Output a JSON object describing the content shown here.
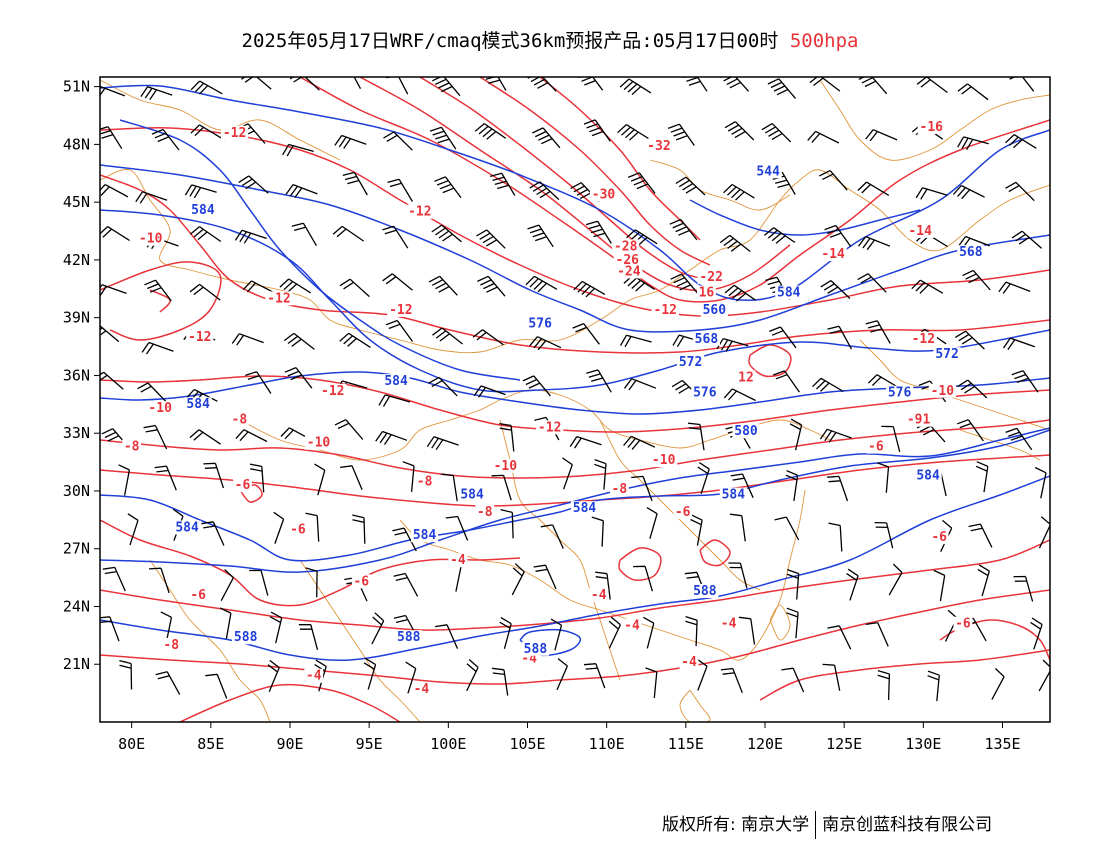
{
  "title": {
    "main": "2025年05月17日WRF/cmaq模式36km预报产品:05月17日00时",
    "level": "500hpa",
    "level_color": "#e8333a"
  },
  "map": {
    "lon_range": [
      78,
      138
    ],
    "lat_range": [
      18,
      51.5
    ],
    "lon_labels": [
      "80E",
      "85E",
      "90E",
      "95E",
      "100E",
      "105E",
      "110E",
      "115E",
      "120E",
      "125E",
      "130E",
      "135E"
    ],
    "lon_values": [
      80,
      85,
      90,
      95,
      100,
      105,
      110,
      115,
      120,
      125,
      130,
      135
    ],
    "lat_labels": [
      "51N",
      "48N",
      "45N",
      "42N",
      "39N",
      "36N",
      "33N",
      "30N",
      "27N",
      "24N",
      "21N"
    ],
    "lat_values": [
      51,
      48,
      45,
      42,
      39,
      36,
      33,
      30,
      27,
      24,
      21
    ],
    "colors": {
      "temperature": "#e8333a",
      "geopotential": "#1f3fd8",
      "boundary": "#e0953c",
      "wind": "#000000"
    },
    "geopotential_labels": [
      {
        "text": "584",
        "lon": 84.5,
        "lat": 44.5
      },
      {
        "text": "544",
        "lon": 120.2,
        "lat": 46.5
      },
      {
        "text": "568",
        "lon": 133,
        "lat": 42.3
      },
      {
        "text": "584",
        "lon": 121.5,
        "lat": 40.2
      },
      {
        "text": "560",
        "lon": 116.8,
        "lat": 39.3
      },
      {
        "text": "576",
        "lon": 105.8,
        "lat": 38.6
      },
      {
        "text": "568",
        "lon": 116.3,
        "lat": 37.8
      },
      {
        "text": "572",
        "lon": 115.3,
        "lat": 36.6
      },
      {
        "text": "572",
        "lon": 131.5,
        "lat": 37.0
      },
      {
        "text": "584",
        "lon": 96.7,
        "lat": 35.6
      },
      {
        "text": "576",
        "lon": 116.2,
        "lat": 35.0
      },
      {
        "text": "576",
        "lon": 128.5,
        "lat": 35.0
      },
      {
        "text": "584",
        "lon": 84.2,
        "lat": 34.4
      },
      {
        "text": "580",
        "lon": 118.8,
        "lat": 33.0
      },
      {
        "text": "584",
        "lon": 130.3,
        "lat": 30.7
      },
      {
        "text": "584",
        "lon": 118.0,
        "lat": 29.7
      },
      {
        "text": "584",
        "lon": 101.5,
        "lat": 29.7
      },
      {
        "text": "584",
        "lon": 108.6,
        "lat": 29.0
      },
      {
        "text": "584",
        "lon": 83.5,
        "lat": 28.0
      },
      {
        "text": "584",
        "lon": 98.5,
        "lat": 27.6
      },
      {
        "text": "588",
        "lon": 116.2,
        "lat": 24.7
      },
      {
        "text": "588",
        "lon": 87.2,
        "lat": 22.3
      },
      {
        "text": "588",
        "lon": 97.5,
        "lat": 22.3
      },
      {
        "text": "588",
        "lon": 105.5,
        "lat": 21.7
      }
    ],
    "temperature_labels": [
      {
        "text": "-12",
        "lon": 86.5,
        "lat": 48.5
      },
      {
        "text": "-32",
        "lon": 113.3,
        "lat": 47.8
      },
      {
        "text": "-16",
        "lon": 130.5,
        "lat": 48.8
      },
      {
        "text": "-30",
        "lon": 109.8,
        "lat": 45.3
      },
      {
        "text": "-12",
        "lon": 98.2,
        "lat": 44.4
      },
      {
        "text": "-14",
        "lon": 129.8,
        "lat": 43.4
      },
      {
        "text": "-10",
        "lon": 81.2,
        "lat": 43.0
      },
      {
        "text": "-28",
        "lon": 111.2,
        "lat": 42.6
      },
      {
        "text": "-14",
        "lon": 124.3,
        "lat": 42.2
      },
      {
        "text": "-26",
        "lon": 111.3,
        "lat": 41.9
      },
      {
        "text": "-24",
        "lon": 111.4,
        "lat": 41.3
      },
      {
        "text": "-22",
        "lon": 116.6,
        "lat": 41.0
      },
      {
        "text": "16",
        "lon": 116.3,
        "lat": 40.2
      },
      {
        "text": "-12",
        "lon": 89.3,
        "lat": 39.9
      },
      {
        "text": "-12",
        "lon": 97.0,
        "lat": 39.3
      },
      {
        "text": "-12",
        "lon": 113.7,
        "lat": 39.3
      },
      {
        "text": "-12",
        "lon": 84.3,
        "lat": 37.9
      },
      {
        "text": "-12",
        "lon": 130.0,
        "lat": 37.8
      },
      {
        "text": "12",
        "lon": 118.8,
        "lat": 35.8
      },
      {
        "text": "-12",
        "lon": 92.7,
        "lat": 35.1
      },
      {
        "text": "-10",
        "lon": 131.2,
        "lat": 35.1
      },
      {
        "text": "-10",
        "lon": 81.8,
        "lat": 34.2
      },
      {
        "text": "-8",
        "lon": 86.8,
        "lat": 33.6
      },
      {
        "text": "-91",
        "lon": 129.7,
        "lat": 33.6
      },
      {
        "text": "-12",
        "lon": 106.4,
        "lat": 33.2
      },
      {
        "text": "-10",
        "lon": 91.8,
        "lat": 32.4
      },
      {
        "text": "-8",
        "lon": 80.0,
        "lat": 32.2
      },
      {
        "text": "-6",
        "lon": 127.0,
        "lat": 32.2
      },
      {
        "text": "-10",
        "lon": 113.6,
        "lat": 31.5
      },
      {
        "text": "-10",
        "lon": 103.6,
        "lat": 31.2
      },
      {
        "text": "-6",
        "lon": 87.0,
        "lat": 30.2
      },
      {
        "text": "-8",
        "lon": 98.5,
        "lat": 30.4
      },
      {
        "text": "-8",
        "lon": 110.8,
        "lat": 30.0
      },
      {
        "text": "-8",
        "lon": 102.3,
        "lat": 28.8
      },
      {
        "text": "-6",
        "lon": 114.8,
        "lat": 28.8
      },
      {
        "text": "-6",
        "lon": 90.5,
        "lat": 27.9
      },
      {
        "text": "-6",
        "lon": 131.0,
        "lat": 27.5
      },
      {
        "text": "-4",
        "lon": 100.6,
        "lat": 26.3
      },
      {
        "text": "-6",
        "lon": 94.5,
        "lat": 25.2
      },
      {
        "text": "-6",
        "lon": 84.2,
        "lat": 24.5
      },
      {
        "text": "-4",
        "lon": 109.5,
        "lat": 24.5
      },
      {
        "text": "-4",
        "lon": 111.6,
        "lat": 22.9
      },
      {
        "text": "-4",
        "lon": 117.7,
        "lat": 23.0
      },
      {
        "text": "-6",
        "lon": 132.5,
        "lat": 23.0
      },
      {
        "text": "-8",
        "lon": 82.5,
        "lat": 21.9
      },
      {
        "text": "-4",
        "lon": 105.1,
        "lat": 21.2
      },
      {
        "text": "-4",
        "lon": 115.2,
        "lat": 21.0
      },
      {
        "text": "-4",
        "lon": 91.5,
        "lat": 20.3
      },
      {
        "text": "-4",
        "lon": 98.3,
        "lat": 19.6
      }
    ]
  },
  "copyright": {
    "left": "版权所有: 南京大学",
    "right": "南京创蓝科技有限公司"
  }
}
